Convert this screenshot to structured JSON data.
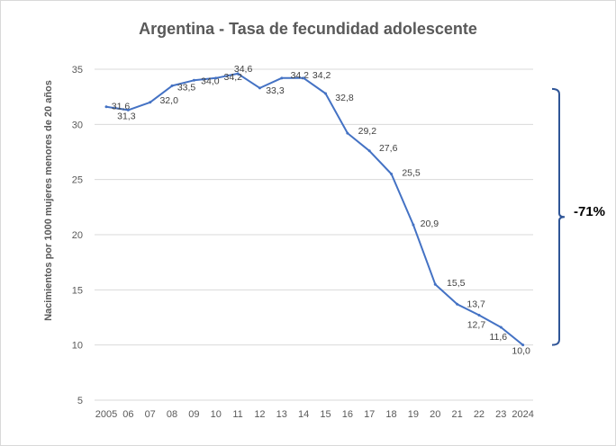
{
  "chart_data": {
    "type": "line",
    "title": "Argentina - Tasa de fecundidad adolescente",
    "xlabel": "",
    "ylabel": "Nacimientos por 1000 mujeres menores de 20 años",
    "ylim": [
      5,
      35
    ],
    "yticks": [
      "5",
      "10",
      "15",
      "20",
      "25",
      "30",
      "35"
    ],
    "grid": true,
    "x_tick_labels": [
      "2005",
      "06",
      "07",
      "08",
      "09",
      "10",
      "11",
      "12",
      "13",
      "14",
      "15",
      "16",
      "17",
      "18",
      "19",
      "20",
      "21",
      "22",
      "23",
      "2024"
    ],
    "series": [
      {
        "name": "Tasa de fecundidad adolescente",
        "color": "#4472c4",
        "values": [
          31.6,
          31.3,
          32.0,
          33.5,
          34.0,
          34.2,
          34.6,
          33.3,
          34.2,
          34.2,
          32.8,
          29.2,
          27.6,
          25.5,
          20.9,
          15.5,
          13.7,
          12.7,
          11.6,
          10.0
        ],
        "labels": [
          "31,6",
          "31,3",
          "32,0",
          "33,5",
          "34,0",
          "34,2",
          "34,6",
          "33,3",
          "34,2",
          "34,2",
          "32,8",
          "29,2",
          "27,6",
          "25,5",
          "20,9",
          "15,5",
          "13,7",
          "12,7",
          "11,6",
          "10,0"
        ]
      }
    ],
    "annotation": {
      "text": "-71%",
      "from_value": 34.2,
      "to_value": 10.0,
      "bracket_color": "#2f5597"
    }
  }
}
